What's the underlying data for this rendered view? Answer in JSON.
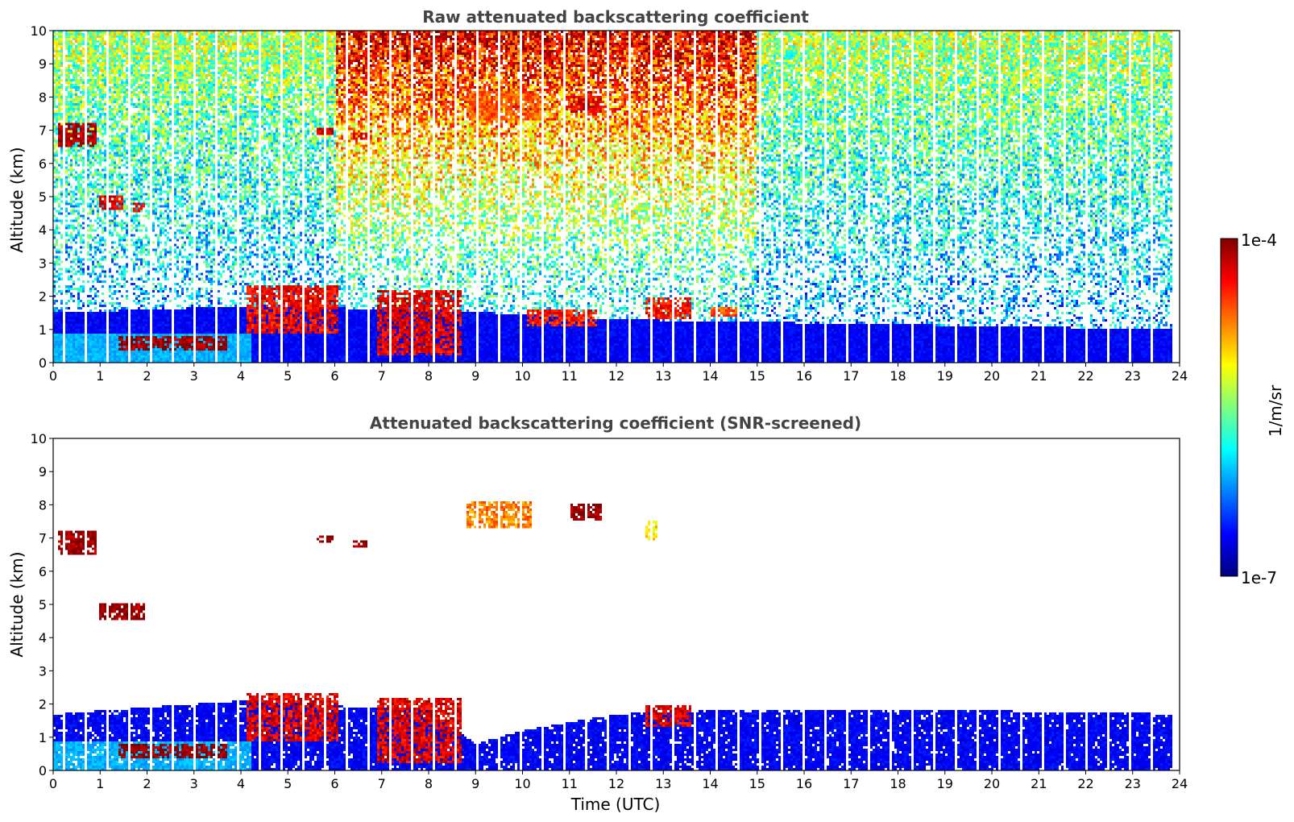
{
  "chart_data": [
    {
      "type": "heatmap",
      "title": "Raw attenuated backscattering coefficient",
      "xlabel": "",
      "ylabel": "Altitude (km)",
      "xlim": [
        0,
        24
      ],
      "ylim": [
        0,
        10
      ],
      "xticks": [
        0,
        1,
        2,
        3,
        4,
        5,
        6,
        7,
        8,
        9,
        10,
        11,
        12,
        13,
        14,
        15,
        16,
        17,
        18,
        19,
        20,
        21,
        22,
        23,
        24
      ],
      "yticks": [
        0,
        1,
        2,
        3,
        4,
        5,
        6,
        7,
        8,
        9,
        10
      ],
      "x_unit": "hours UTC",
      "y_unit": "km",
      "boundary_layer_top_km": [
        [
          0,
          1.5
        ],
        [
          4,
          1.7
        ],
        [
          8,
          1.6
        ],
        [
          12,
          1.3
        ],
        [
          16,
          1.2
        ],
        [
          20,
          1.1
        ],
        [
          24,
          1.0
        ]
      ],
      "features": [
        {
          "name": "cirrus layer",
          "x": [
            8.8,
            10.4
          ],
          "y": [
            7.3,
            8.2
          ],
          "level": 0.78
        },
        {
          "name": "cirrus patch",
          "x": [
            11.0,
            11.7
          ],
          "y": [
            7.5,
            8.0
          ],
          "level": 0.9
        },
        {
          "name": "cirrus patch",
          "x": [
            12.6,
            12.9
          ],
          "y": [
            6.9,
            7.6
          ],
          "level": 0.72
        },
        {
          "name": "mid cloud",
          "x": [
            0.1,
            0.95
          ],
          "y": [
            6.5,
            7.2
          ],
          "level": 0.95
        },
        {
          "name": "mid cloud",
          "x": [
            1.0,
            1.5
          ],
          "y": [
            4.6,
            5.0
          ],
          "level": 0.9
        },
        {
          "name": "mid cloud",
          "x": [
            1.7,
            1.95
          ],
          "y": [
            4.5,
            4.8
          ],
          "level": 0.9
        },
        {
          "name": "mid cloud",
          "x": [
            5.6,
            5.95
          ],
          "y": [
            6.85,
            7.05
          ],
          "level": 0.92
        },
        {
          "name": "mid cloud",
          "x": [
            6.4,
            6.75
          ],
          "y": [
            6.75,
            6.9
          ],
          "level": 0.9
        },
        {
          "name": "low cloud",
          "x": [
            1.4,
            3.7
          ],
          "y": [
            0.4,
            0.8
          ],
          "level": 0.98
        },
        {
          "name": "low cloud",
          "x": [
            4.1,
            6.1
          ],
          "y": [
            0.9,
            2.3
          ],
          "level": 0.88
        },
        {
          "name": "low cloud",
          "x": [
            6.9,
            8.7
          ],
          "y": [
            0.2,
            2.2
          ],
          "level": 0.9
        },
        {
          "name": "low cloud",
          "x": [
            10.1,
            11.6
          ],
          "y": [
            1.1,
            1.6
          ],
          "level": 0.85
        },
        {
          "name": "low cloud",
          "x": [
            12.6,
            13.6
          ],
          "y": [
            1.3,
            2.0
          ],
          "level": 0.86
        },
        {
          "name": "low cloud",
          "x": [
            14.0,
            14.6
          ],
          "y": [
            1.4,
            1.7
          ],
          "level": 0.8
        }
      ]
    },
    {
      "type": "heatmap",
      "title": "Attenuated backscattering coefficient (SNR-screened)",
      "xlabel": "Time (UTC)",
      "ylabel": "Altitude (km)",
      "xlim": [
        0,
        24
      ],
      "ylim": [
        0,
        10
      ],
      "xticks": [
        0,
        1,
        2,
        3,
        4,
        5,
        6,
        7,
        8,
        9,
        10,
        11,
        12,
        13,
        14,
        15,
        16,
        17,
        18,
        19,
        20,
        21,
        22,
        23,
        24
      ],
      "yticks": [
        0,
        1,
        2,
        3,
        4,
        5,
        6,
        7,
        8,
        9,
        10
      ],
      "x_unit": "hours UTC",
      "y_unit": "km",
      "boundary_layer_top_km": [
        [
          0,
          1.7
        ],
        [
          4,
          2.1
        ],
        [
          8,
          1.8
        ],
        [
          9,
          0.8
        ],
        [
          10,
          1.2
        ],
        [
          12,
          1.7
        ],
        [
          14,
          1.8
        ],
        [
          16,
          1.8
        ],
        [
          20,
          1.8
        ],
        [
          24,
          1.7
        ]
      ],
      "features": [
        {
          "name": "cirrus layer",
          "x": [
            8.8,
            10.2
          ],
          "y": [
            7.3,
            8.1
          ],
          "level": 0.75
        },
        {
          "name": "cirrus patch",
          "x": [
            11.0,
            11.7
          ],
          "y": [
            7.5,
            8.0
          ],
          "level": 0.98
        },
        {
          "name": "cirrus patch",
          "x": [
            12.6,
            12.9
          ],
          "y": [
            6.9,
            7.5
          ],
          "level": 0.65
        },
        {
          "name": "mid cloud",
          "x": [
            0.1,
            0.95
          ],
          "y": [
            6.5,
            7.2
          ],
          "level": 0.98
        },
        {
          "name": "mid cloud",
          "x": [
            1.0,
            1.95
          ],
          "y": [
            4.5,
            5.0
          ],
          "level": 0.99
        },
        {
          "name": "mid cloud",
          "x": [
            5.6,
            5.95
          ],
          "y": [
            6.85,
            7.05
          ],
          "level": 0.99
        },
        {
          "name": "mid cloud",
          "x": [
            6.4,
            6.75
          ],
          "y": [
            6.75,
            6.9
          ],
          "level": 0.99
        },
        {
          "name": "low cloud",
          "x": [
            1.4,
            3.7
          ],
          "y": [
            0.4,
            0.8
          ],
          "level": 0.99
        },
        {
          "name": "low cloud",
          "x": [
            4.1,
            6.1
          ],
          "y": [
            0.9,
            2.3
          ],
          "level": 0.9
        },
        {
          "name": "low cloud",
          "x": [
            6.9,
            8.7
          ],
          "y": [
            0.2,
            2.2
          ],
          "level": 0.9
        },
        {
          "name": "low cloud",
          "x": [
            12.6,
            13.6
          ],
          "y": [
            1.3,
            2.0
          ],
          "level": 0.9
        }
      ]
    }
  ],
  "colorbar": {
    "label": "1/m/sr",
    "max_label": "1e-4",
    "min_label": "1e-7",
    "colormap": "jet",
    "colors": [
      "#00007f",
      "#0000ff",
      "#007fff",
      "#00ffff",
      "#7fff7f",
      "#ffff00",
      "#ff7f00",
      "#ff0000",
      "#7f0000"
    ]
  }
}
